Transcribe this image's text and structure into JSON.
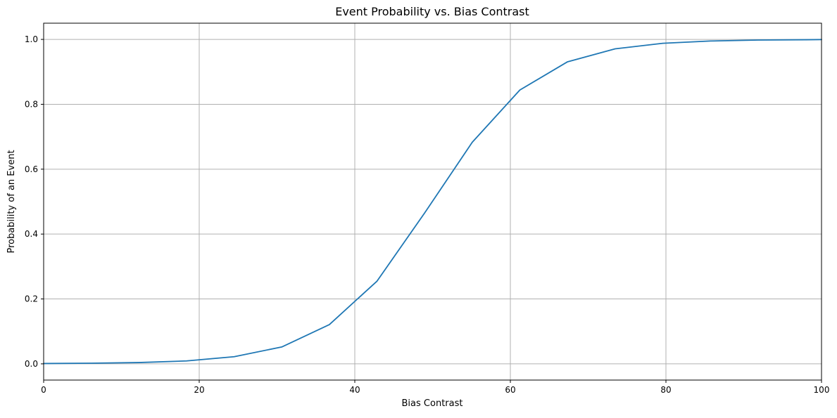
{
  "chart_data": {
    "type": "line",
    "title": "Event Probability vs. Bias Contrast",
    "xlabel": "Bias Contrast",
    "ylabel": "Probability of an Event",
    "xlim": [
      0,
      100
    ],
    "ylim": [
      -0.05,
      1.05
    ],
    "x_ticks": [
      0,
      20,
      40,
      60,
      80,
      100
    ],
    "y_ticks": [
      0.0,
      0.2,
      0.4,
      0.6,
      0.8,
      1.0
    ],
    "x_tick_labels": [
      "0",
      "20",
      "40",
      "60",
      "80",
      "100"
    ],
    "y_tick_labels": [
      "0.0",
      "0.2",
      "0.4",
      "0.6",
      "0.8",
      "1.0"
    ],
    "grid": true,
    "series": [
      {
        "color": "#1f77b4",
        "x": [
          0,
          6.12,
          12.24,
          18.37,
          24.49,
          30.61,
          36.73,
          42.86,
          48.98,
          55.1,
          61.22,
          67.35,
          73.47,
          79.59,
          85.71,
          91.84,
          97.96,
          100
        ],
        "y": [
          0.001,
          0.002,
          0.004,
          0.009,
          0.022,
          0.052,
          0.121,
          0.255,
          0.465,
          0.683,
          0.844,
          0.931,
          0.971,
          0.988,
          0.995,
          0.998,
          0.999,
          0.9995
        ]
      }
    ]
  }
}
